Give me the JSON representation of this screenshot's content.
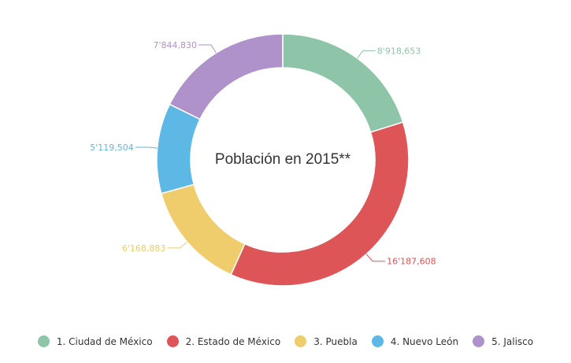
{
  "chart_data": {
    "type": "pie",
    "center_title": "Población en 2015**",
    "categories": [
      "1. Ciudad de México",
      "2. Estado de México",
      "3. Puebla",
      "4. Nuevo León",
      "5. Jalisco"
    ],
    "values": [
      8918653,
      16187608,
      6168883,
      5119504,
      7844830
    ],
    "value_labels": [
      "8'918,653",
      "16'187,608",
      "6'168,883",
      "5'119,504",
      "7'844,830"
    ],
    "colors": [
      "#8ec5a8",
      "#dd5557",
      "#efcc6c",
      "#5db8e5",
      "#ae92c9"
    ],
    "legend_position": "bottom"
  }
}
